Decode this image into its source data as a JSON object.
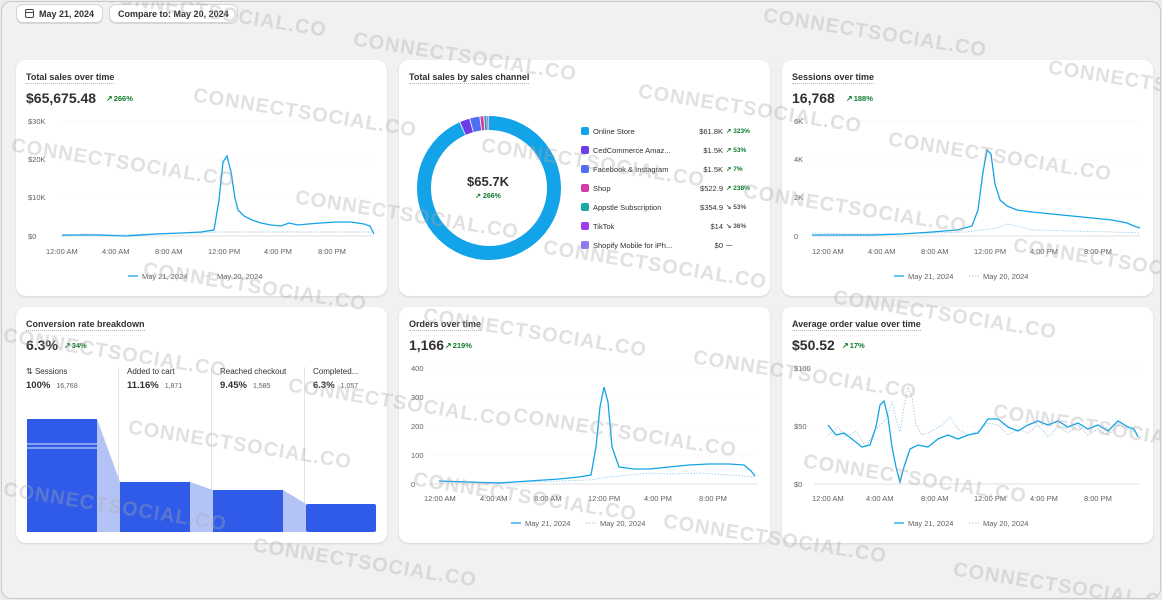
{
  "header": {
    "date_label": "May 21, 2024",
    "compare_label": "Compare to: May 20, 2024"
  },
  "legend": {
    "current": "May 21, 2024",
    "previous": "May 20, 2024"
  },
  "colors": {
    "accent": "#13a3e8",
    "funnel": "#2f5be8",
    "positive": "#0d7a2d"
  },
  "total_sales": {
    "title": "Total sales over time",
    "value": "$65,675.48",
    "delta": "266%",
    "y_ticks": [
      "$30K",
      "$20K",
      "$10K",
      "$0"
    ],
    "x_ticks": [
      "12:00 AM",
      "4:00 AM",
      "8:00 AM",
      "12:00 PM",
      "4:00 PM",
      "8:00 PM"
    ]
  },
  "sales_channel": {
    "title": "Total sales by sales channel",
    "center_value": "$65.7K",
    "center_delta": "266%",
    "channels": [
      {
        "name": "Online Store",
        "value": "$61.8K",
        "delta": "323%",
        "color": "#13a3e8",
        "trend": "up"
      },
      {
        "name": "CedCommerce Amaz...",
        "value": "$1.5K",
        "delta": "53%",
        "color": "#6a3de8",
        "trend": "up"
      },
      {
        "name": "Facebook & Instagram",
        "value": "$1.5K",
        "delta": "7%",
        "color": "#4f6ef0",
        "trend": "up"
      },
      {
        "name": "Shop",
        "value": "$522.9",
        "delta": "238%",
        "color": "#d63ba8",
        "trend": "up"
      },
      {
        "name": "Appstle Subscription",
        "value": "$354.9",
        "delta": "53%",
        "color": "#1fa8a8",
        "trend": "down"
      },
      {
        "name": "TikTok",
        "value": "$14",
        "delta": "36%",
        "color": "#a13de8",
        "trend": "down"
      },
      {
        "name": "Shopify Mobile for iPh...",
        "value": "$0",
        "delta": "—",
        "color": "#8a7cf0",
        "trend": "none"
      }
    ]
  },
  "sessions": {
    "title": "Sessions over time",
    "value": "16,768",
    "delta": "188%",
    "y_ticks": [
      "6K",
      "4K",
      "2K",
      "0"
    ],
    "x_ticks": [
      "12:00 AM",
      "4:00 AM",
      "8:00 AM",
      "12:00 PM",
      "4:00 PM",
      "8:00 PM"
    ]
  },
  "conversion": {
    "title": "Conversion rate breakdown",
    "value": "6.3%",
    "delta": "34%",
    "stages": [
      {
        "name": "Sessions",
        "pct": "100%",
        "count": "16,768"
      },
      {
        "name": "Added to cart",
        "pct": "11.16%",
        "count": "1,871"
      },
      {
        "name": "Reached checkout",
        "pct": "9.45%",
        "count": "1,585"
      },
      {
        "name": "Completed...",
        "pct": "6.3%",
        "count": "1,057"
      }
    ]
  },
  "orders": {
    "title": "Orders over time",
    "value": "1,166",
    "delta": "219%",
    "y_ticks": [
      "400",
      "300",
      "200",
      "100",
      "0"
    ],
    "x_ticks": [
      "12:00 AM",
      "4:00 AM",
      "8:00 AM",
      "12:00 PM",
      "4:00 PM",
      "8:00 PM"
    ]
  },
  "aov": {
    "title": "Average order value over time",
    "value": "$50.52",
    "delta": "17%",
    "y_ticks": [
      "$100",
      "$50",
      "$0"
    ],
    "x_ticks": [
      "12:00 AM",
      "4:00 AM",
      "8:00 AM",
      "12:00 PM",
      "4:00 PM",
      "8:00 PM"
    ]
  },
  "watermark": "CONNECTSOCIAL.CO"
}
